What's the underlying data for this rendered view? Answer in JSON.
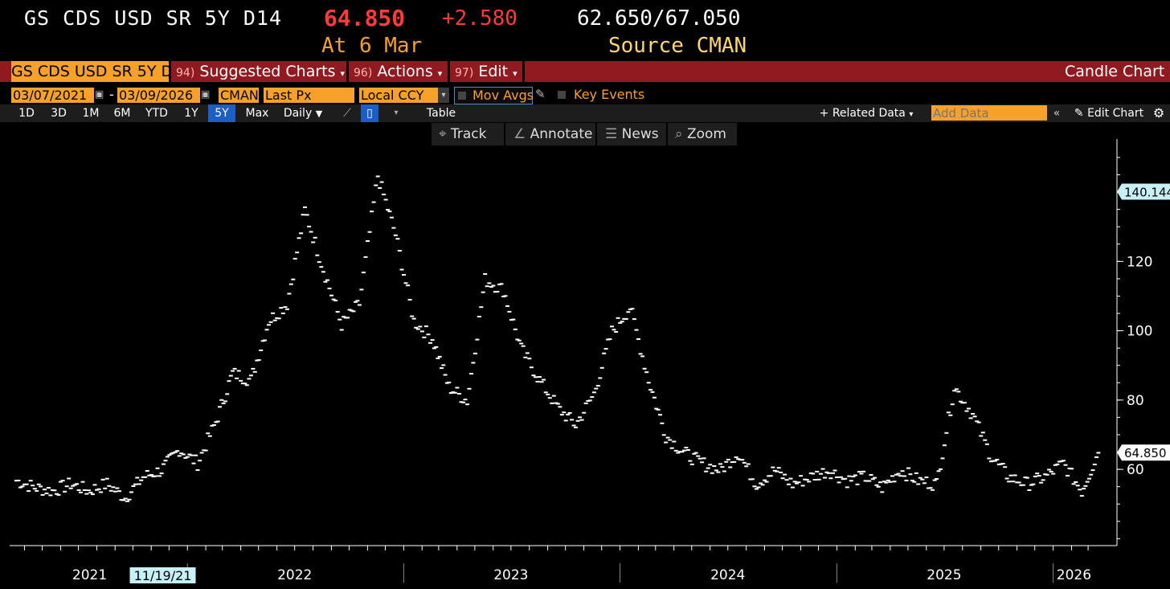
{
  "header": {
    "ticker": "GS CDS USD SR 5Y D14",
    "price": "64.850",
    "change": "+2.580",
    "range": "62.650/67.050",
    "as_of": "At 6 Mar",
    "source": "Source CMAN"
  },
  "menu": {
    "security": "GS CDS USD SR 5Y D14",
    "suggested_num": "94)",
    "suggested": "Suggested Charts",
    "actions_num": "96)",
    "actions": "Actions",
    "edit_num": "97)",
    "edit": "Edit",
    "chart_type": "Candle Chart"
  },
  "fields": {
    "start_date": "03/07/2021",
    "dash": "-",
    "end_date": "03/09/2026",
    "source": "CMAN",
    "field": "Last Px",
    "currency": "Local CCY",
    "mov_avgs": "Mov Avgs",
    "key_events": "Key Events"
  },
  "ranges": {
    "items": [
      "1D",
      "3D",
      "1M",
      "6M",
      "YTD",
      "1Y",
      "5Y",
      "Max"
    ],
    "selected": "5Y",
    "frequency": "Daily",
    "table": "Table",
    "related": "+ Related Data",
    "add_data_placeholder": "Add Data",
    "edit_chart": "Edit Chart"
  },
  "tools": {
    "track": "Track",
    "annotate": "Annotate",
    "news": "News",
    "zoom": "Zoom"
  },
  "colors": {
    "accent_orange": "#f7a12a",
    "menu_red": "#8f1a20",
    "price_red": "#ff3b3b",
    "selected_blue": "#1b5ec6",
    "axis_tag": "#c7f0f7"
  },
  "chart_data": {
    "type": "candle",
    "title": "GS CDS USD SR 5Y D14",
    "ylim": [
      38,
      153
    ],
    "yticks": [
      60,
      80,
      100,
      120
    ],
    "price_tags": [
      "140.144",
      "64.850"
    ],
    "x_labels": [
      "2021",
      "2022",
      "2023",
      "2024",
      "2025",
      "2026"
    ],
    "crosshair_date": "11/19/21",
    "grid": false,
    "series": [
      {
        "values_desc": "weekly approx closes from Mar-2021 to Mar-2026",
        "x": [
          "2021-03",
          "2021-04",
          "2021-05",
          "2021-06",
          "2021-07",
          "2021-08",
          "2021-09",
          "2021-10",
          "2021-11",
          "2021-12",
          "2022-01",
          "2022-02",
          "2022-03",
          "2022-04",
          "2022-05",
          "2022-06",
          "2022-07",
          "2022-08",
          "2022-09",
          "2022-10",
          "2022-11",
          "2022-12",
          "2023-01",
          "2023-02",
          "2023-03",
          "2023-04",
          "2023-05",
          "2023-06",
          "2023-07",
          "2023-08",
          "2023-09",
          "2023-10",
          "2023-11",
          "2023-12",
          "2024-01",
          "2024-02",
          "2024-03",
          "2024-04",
          "2024-05",
          "2024-06",
          "2024-07",
          "2024-08",
          "2024-09",
          "2024-10",
          "2024-11",
          "2024-12",
          "2025-01",
          "2025-02",
          "2025-03",
          "2025-04",
          "2025-05",
          "2025-06",
          "2025-07",
          "2025-08",
          "2025-09",
          "2025-10",
          "2025-11",
          "2025-12",
          "2026-01",
          "2026-02",
          "2026-03"
        ],
        "values": [
          57,
          55,
          54,
          56,
          54,
          56,
          52,
          58,
          60,
          66,
          62,
          74,
          88,
          86,
          103,
          108,
          135,
          118,
          102,
          108,
          145,
          128,
          103,
          98,
          84,
          80,
          115,
          112,
          95,
          86,
          78,
          73,
          82,
          100,
          107,
          86,
          70,
          65,
          62,
          60,
          65,
          56,
          60,
          56,
          58,
          60,
          57,
          58,
          55,
          60,
          57,
          56,
          84,
          76,
          64,
          58,
          56,
          58,
          62,
          54,
          65
        ]
      }
    ]
  }
}
